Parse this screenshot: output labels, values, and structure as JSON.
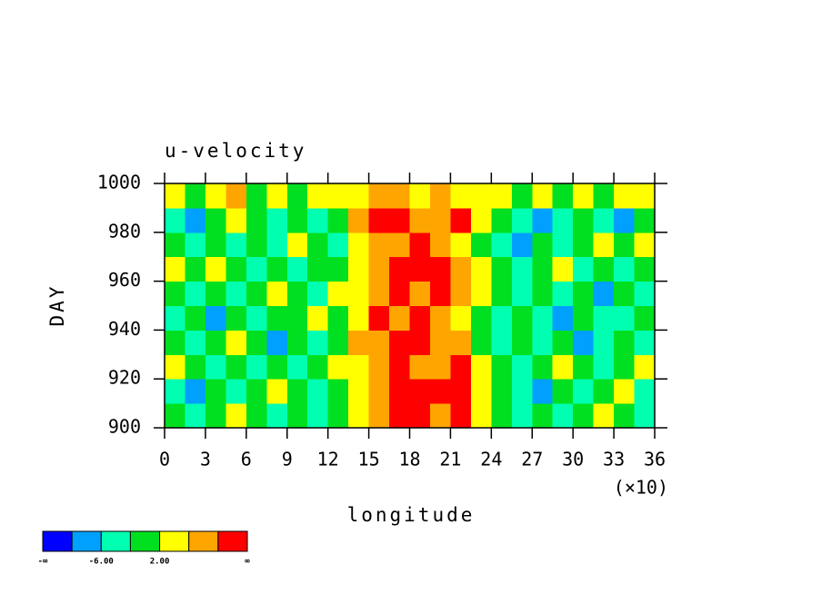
{
  "chart_data": {
    "type": "heatmap",
    "title": "u-velocity",
    "x_label": "longitude",
    "x_multiplier": "(×10)",
    "y_label": "DAY",
    "xlim": [
      0,
      36
    ],
    "ylim": [
      900,
      1000
    ],
    "xticks": [
      0,
      3,
      6,
      9,
      12,
      15,
      18,
      21,
      24,
      27,
      30,
      33,
      36
    ],
    "yticks": [
      900,
      920,
      940,
      960,
      980,
      1000
    ],
    "levels": [
      -10,
      -6,
      -2,
      2,
      6,
      10
    ],
    "colors": [
      "#0000ff",
      "#00a0ff",
      "#00ffb0",
      "#00e020",
      "#ffff00",
      "#ffa500",
      "#ff0000"
    ],
    "colorbar_labels": [
      {
        "value": null,
        "label": "-∞"
      },
      {
        "value": -6,
        "label": "-6.00"
      },
      {
        "value": 2,
        "label": "2.00"
      },
      {
        "value": null,
        "label": "∞"
      }
    ],
    "z": [
      [
        0,
        -4,
        0,
        4,
        0,
        -4,
        0,
        -4,
        0,
        4,
        8,
        12,
        12,
        8,
        12,
        4,
        0,
        -4,
        0,
        -4,
        0,
        4,
        0,
        -4
      ],
      [
        -4,
        -8,
        0,
        -4,
        0,
        4,
        0,
        -4,
        0,
        4,
        8,
        12,
        12,
        12,
        12,
        4,
        0,
        -4,
        -8,
        0,
        -4,
        0,
        4,
        -4
      ],
      [
        4,
        0,
        -4,
        0,
        -4,
        0,
        -4,
        0,
        4,
        4,
        8,
        12,
        8,
        8,
        12,
        4,
        0,
        -4,
        0,
        4,
        0,
        -4,
        0,
        4
      ],
      [
        0,
        -4,
        0,
        4,
        0,
        -8,
        0,
        -4,
        0,
        8,
        8,
        12,
        12,
        8,
        8,
        0,
        -4,
        0,
        -4,
        0,
        -8,
        -4,
        0,
        -4
      ],
      [
        -4,
        0,
        -8,
        0,
        -4,
        0,
        0,
        4,
        0,
        4,
        12,
        8,
        12,
        8,
        4,
        0,
        -4,
        0,
        -4,
        -8,
        0,
        -4,
        -4,
        0
      ],
      [
        0,
        -4,
        0,
        -4,
        0,
        4,
        0,
        -4,
        4,
        4,
        8,
        12,
        8,
        12,
        8,
        4,
        0,
        -4,
        0,
        -4,
        0,
        -8,
        0,
        -4
      ],
      [
        4,
        0,
        4,
        0,
        -4,
        0,
        -4,
        0,
        0,
        4,
        8,
        12,
        12,
        12,
        8,
        4,
        0,
        -4,
        0,
        4,
        -4,
        0,
        -4,
        0
      ],
      [
        0,
        -4,
        0,
        -4,
        0,
        -4,
        4,
        0,
        -4,
        4,
        8,
        8,
        12,
        8,
        4,
        0,
        -4,
        -8,
        0,
        -4,
        0,
        4,
        0,
        4
      ],
      [
        -4,
        -8,
        0,
        4,
        0,
        -4,
        0,
        -4,
        0,
        8,
        12,
        12,
        8,
        8,
        12,
        4,
        0,
        -4,
        -8,
        -4,
        0,
        -4,
        -8,
        0
      ],
      [
        4,
        0,
        4,
        8,
        0,
        4,
        0,
        4,
        4,
        4,
        8,
        8,
        4,
        8,
        4,
        4,
        4,
        0,
        4,
        0,
        4,
        0,
        4,
        4
      ]
    ]
  }
}
